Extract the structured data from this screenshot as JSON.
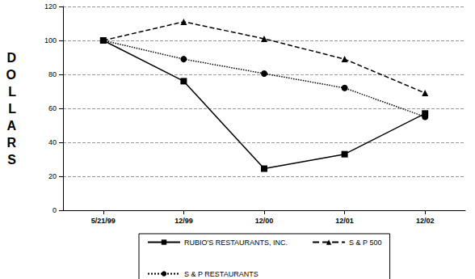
{
  "chart_data": {
    "type": "line",
    "y_label": "DOLLARS",
    "categories": [
      "5/21/99",
      "12/99",
      "12/00",
      "12/01",
      "12/02"
    ],
    "series": [
      {
        "name": "RUBIO'S RESTAURANTS, INC.",
        "color": "#000000",
        "marker": "square",
        "line_style": "solid",
        "values": [
          100,
          76,
          24.5,
          33,
          57
        ]
      },
      {
        "name": "S & P 500",
        "color": "#000000",
        "marker": "triangle",
        "line_style": "dashed",
        "values": [
          100,
          111,
          101,
          89,
          69
        ]
      },
      {
        "name": "S & P RESTAURANTS",
        "color": "#000000",
        "marker": "circle",
        "line_style": "dotted",
        "values": [
          100,
          89,
          80.5,
          72,
          55
        ]
      }
    ],
    "ylim": [
      0,
      120
    ],
    "yticks": [
      0,
      20,
      40,
      60,
      80,
      100,
      120
    ],
    "grid": true,
    "legend": "bottom"
  }
}
